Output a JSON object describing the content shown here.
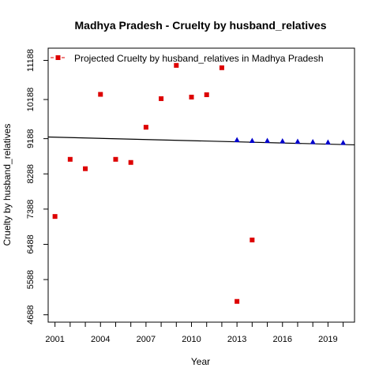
{
  "chart_data": {
    "type": "scatter",
    "title": "Madhya Pradesh  -  Cruelty by husband_relatives",
    "xlabel": "Year",
    "ylabel": "Cruelty by husband_relatives",
    "xlim": [
      2000.55,
      2020.75
    ],
    "ylim": [
      4500,
      11500
    ],
    "x_ticks": [
      2001,
      2004,
      2007,
      2010,
      2013,
      2016,
      2019
    ],
    "x_minor_ticks": [
      2001,
      2002,
      2003,
      2004,
      2005,
      2006,
      2007,
      2008,
      2009,
      2010,
      2011,
      2012,
      2013,
      2014,
      2015,
      2016,
      2017,
      2018,
      2019,
      2020
    ],
    "y_ticks": [
      4688,
      5588,
      6488,
      7388,
      8288,
      9188,
      10188,
      11188
    ],
    "x_tick_labels": [
      "2001",
      "2004",
      "2007",
      "2010",
      "2013",
      "2016",
      "2019"
    ],
    "y_tick_labels": [
      "4688",
      "5588",
      "6488",
      "7388",
      "8288",
      "9188",
      "10188",
      "11188"
    ],
    "grid": false,
    "legend_position": "top",
    "legend_label": "Projected  Cruelty by husband_relatives  in  Madhya Pradesh",
    "series": [
      {
        "marker": "square",
        "color": "#dd0000",
        "x": [
          2001,
          2002,
          2003,
          2004,
          2005,
          2006,
          2007,
          2008,
          2009,
          2010,
          2011,
          2012,
          2013,
          2014
        ],
        "y": [
          7200,
          8660,
          8420,
          10320,
          8660,
          8580,
          9480,
          10210,
          11060,
          10250,
          10310,
          11000,
          5030,
          6600
        ]
      },
      {
        "marker": "triangle",
        "color": "#0000cc",
        "x": [
          2013,
          2014,
          2015,
          2016,
          2017,
          2018,
          2019,
          2020
        ],
        "y": [
          9160,
          9140,
          9140,
          9130,
          9120,
          9110,
          9100,
          9090
        ]
      }
    ],
    "trend_line": {
      "color": "#000000",
      "x": [
        2000.55,
        2020.75
      ],
      "y": [
        9230,
        9030
      ]
    }
  }
}
